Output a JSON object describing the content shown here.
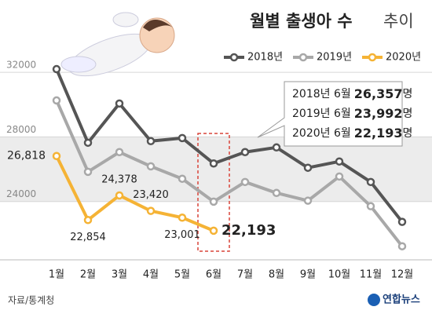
{
  "chart_data": {
    "type": "line",
    "title": "월별 출생아 수",
    "subtitle": "추이",
    "categories": [
      "1월",
      "2월",
      "3월",
      "4월",
      "5월",
      "6월",
      "7월",
      "8월",
      "9월",
      "10월",
      "11월",
      "12월"
    ],
    "series": [
      {
        "name": "2018년",
        "color": "#555555",
        "values": [
          32200,
          27640,
          30070,
          27740,
          27930,
          26357,
          27060,
          27350,
          26090,
          26480,
          25210,
          22740
        ]
      },
      {
        "name": "2019년",
        "color": "#a8a8a8",
        "values": [
          30260,
          25840,
          27060,
          26180,
          25410,
          23992,
          25210,
          24530,
          24050,
          25550,
          23710,
          21230
        ]
      },
      {
        "name": "2020년",
        "color": "#f5b335",
        "values": [
          26818,
          22854,
          24378,
          23420,
          23001,
          22193,
          null,
          null,
          null,
          null,
          null,
          null
        ],
        "value_labels": [
          "26,818",
          "22,854",
          "24,378",
          "23,420",
          "23,001",
          "22,193",
          null,
          null,
          null,
          null,
          null,
          null
        ]
      }
    ],
    "ylim": [
      20000,
      34000
    ],
    "yticks": [
      24000,
      28000,
      32000
    ],
    "grid": true,
    "callout": [
      {
        "label": "2018년 6월",
        "value": "26,357",
        "unit": "명"
      },
      {
        "label": "2019년 6월",
        "value": "23,992",
        "unit": "명"
      },
      {
        "label": "2020년 6월",
        "value": "22,193",
        "unit": "명"
      }
    ],
    "source": "자료/통계청",
    "logo": "연합뉴스"
  }
}
